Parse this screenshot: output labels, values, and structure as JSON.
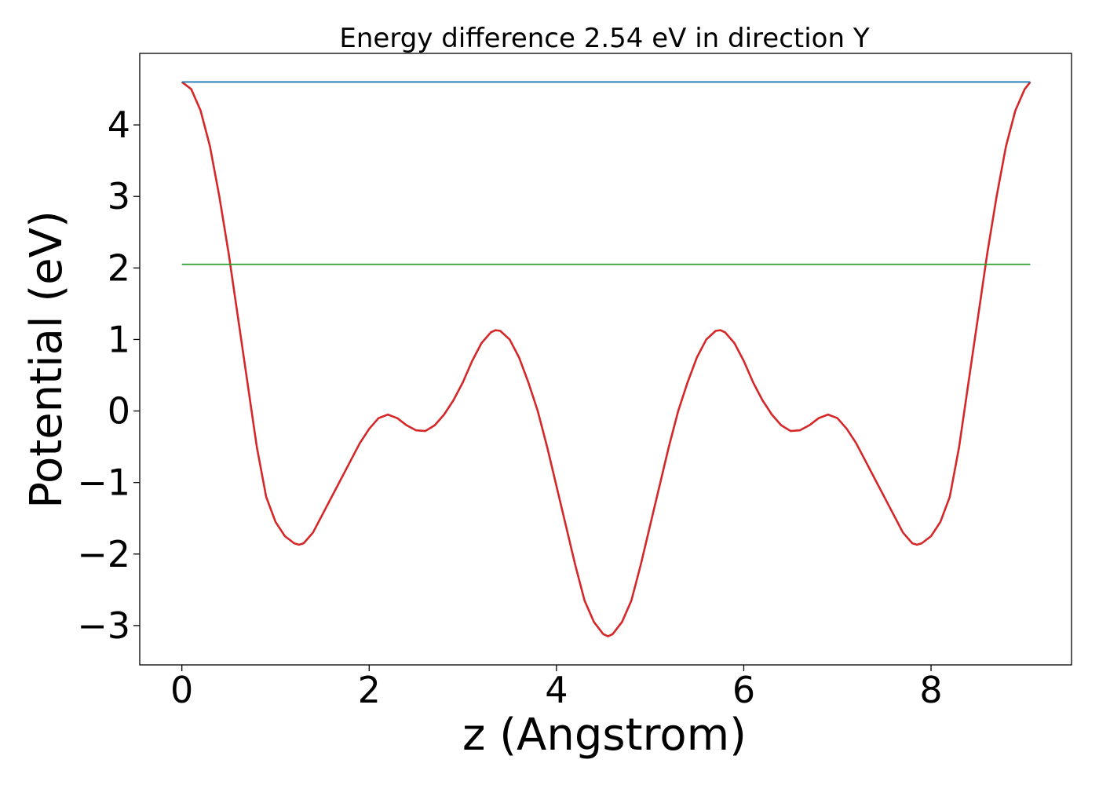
{
  "chart_data": {
    "type": "line",
    "title": "Energy difference 2.54 eV in direction Y",
    "xlabel": "z (Angstrom)",
    "ylabel": "Potential (eV)",
    "xlim": [
      -0.45,
      9.5
    ],
    "ylim": [
      -3.55,
      5.0
    ],
    "xticks": [
      0,
      2,
      4,
      6,
      8
    ],
    "xtick_labels": [
      "0",
      "2",
      "4",
      "6",
      "8"
    ],
    "yticks": [
      -3,
      -2,
      -1,
      0,
      1,
      2,
      3,
      4
    ],
    "ytick_labels": [
      "−3",
      "−2",
      "−1",
      "0",
      "1",
      "2",
      "3",
      "4"
    ],
    "grid": false,
    "legend": "none",
    "series": [
      {
        "color": "#d62728",
        "x": [
          0,
          0.1,
          0.2,
          0.3,
          0.4,
          0.5,
          0.6,
          0.7,
          0.8,
          0.9,
          1.0,
          1.1,
          1.2,
          1.25,
          1.3,
          1.4,
          1.5,
          1.6,
          1.7,
          1.8,
          1.9,
          2.0,
          2.1,
          2.2,
          2.3,
          2.4,
          2.5,
          2.6,
          2.7,
          2.8,
          2.9,
          3.0,
          3.1,
          3.2,
          3.3,
          3.35,
          3.4,
          3.5,
          3.6,
          3.7,
          3.8,
          3.9,
          4.0,
          4.1,
          4.2,
          4.3,
          4.4,
          4.5,
          4.55,
          4.6,
          4.7,
          4.8,
          4.9,
          5.0,
          5.1,
          5.2,
          5.3,
          5.4,
          5.5,
          5.6,
          5.7,
          5.75,
          5.8,
          5.9,
          6.0,
          6.1,
          6.2,
          6.3,
          6.4,
          6.5,
          6.6,
          6.7,
          6.8,
          6.9,
          7.0,
          7.1,
          7.2,
          7.3,
          7.4,
          7.5,
          7.6,
          7.7,
          7.8,
          7.85,
          7.9,
          8.0,
          8.1,
          8.2,
          8.3,
          8.4,
          8.5,
          8.6,
          8.7,
          8.8,
          8.9,
          9.0,
          9.06
        ],
        "y": [
          4.6,
          4.5,
          4.2,
          3.7,
          3.0,
          2.2,
          1.3,
          0.4,
          -0.5,
          -1.2,
          -1.55,
          -1.75,
          -1.85,
          -1.87,
          -1.85,
          -1.7,
          -1.45,
          -1.2,
          -0.95,
          -0.7,
          -0.45,
          -0.25,
          -0.1,
          -0.05,
          -0.1,
          -0.2,
          -0.27,
          -0.28,
          -0.2,
          -0.05,
          0.15,
          0.4,
          0.7,
          0.95,
          1.1,
          1.13,
          1.12,
          1.0,
          0.75,
          0.4,
          0.0,
          -0.5,
          -1.05,
          -1.6,
          -2.15,
          -2.65,
          -2.95,
          -3.12,
          -3.15,
          -3.12,
          -2.95,
          -2.65,
          -2.15,
          -1.6,
          -1.05,
          -0.5,
          0.0,
          0.4,
          0.75,
          1.0,
          1.12,
          1.13,
          1.1,
          0.95,
          0.7,
          0.4,
          0.15,
          -0.05,
          -0.2,
          -0.28,
          -0.27,
          -0.2,
          -0.1,
          -0.05,
          -0.1,
          -0.25,
          -0.45,
          -0.7,
          -0.95,
          -1.2,
          -1.45,
          -1.7,
          -1.85,
          -1.87,
          -1.85,
          -1.75,
          -1.55,
          -1.2,
          -0.5,
          0.4,
          1.3,
          2.2,
          3.0,
          3.7,
          4.2,
          4.5,
          4.6
        ]
      },
      {
        "color": "#1f77b4",
        "x": [
          0,
          9.06
        ],
        "y": [
          4.6,
          4.6
        ]
      },
      {
        "color": "#2ca02c",
        "x": [
          0,
          9.06
        ],
        "y": [
          2.05,
          2.05
        ]
      }
    ]
  }
}
